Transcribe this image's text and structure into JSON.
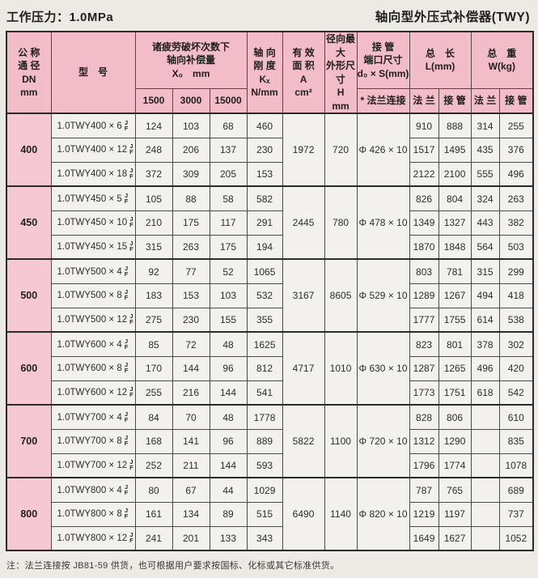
{
  "page": {
    "pressure_title": "工作压力：1.0MPa",
    "product_title": "轴向型外压式补偿器(TWY)",
    "footnote": "注：法兰连接按 JB81-59 供货，也可根据用户要求按国标、化标或其它标准供货。"
  },
  "colors": {
    "header_pink": "#f2bcc9",
    "dn_pink": "#f5c8d3",
    "paper": "#edeae5",
    "cell": "#f3f1ed",
    "border": "#4a4a4a"
  },
  "table": {
    "header": {
      "dn": "公 称\n通 径\nDN\nmm",
      "model": "型　号",
      "x_group": "诸疲劳破坏次数下\n轴向补偿量\nX₀　mm",
      "x_subs": [
        "1500",
        "3000",
        "15000"
      ],
      "kx": "轴 向\n刚 度\nKₓ\nN/mm",
      "area": "有 效\n面 积\nA\ncm²",
      "h": "径向最大\n外形尺寸\nH\nmm",
      "d": "接 管\n端口尺寸\nd₀ × S(mm)",
      "d_sub": "* 法兰连接",
      "l": "总　长\nL(mm)",
      "l_subs": [
        "法 兰",
        "接 管"
      ],
      "w": "总　重\nW(kg)",
      "w_subs": [
        "法 兰",
        "接 管"
      ]
    },
    "jf": {
      "top": "J",
      "bottom": "F"
    },
    "groups": [
      {
        "dn": "400",
        "area": "1972",
        "h": "720",
        "d": "Φ 426 × 10",
        "rows": [
          {
            "model": "1.0TWY400 × 6",
            "x": [
              "124",
              "103",
              "68"
            ],
            "kx": "460",
            "l": [
              "910",
              "888"
            ],
            "w": [
              "314",
              "255"
            ]
          },
          {
            "model": "1.0TWY400 × 12",
            "x": [
              "248",
              "206",
              "137"
            ],
            "kx": "230",
            "l": [
              "1517",
              "1495"
            ],
            "w": [
              "435",
              "376"
            ]
          },
          {
            "model": "1.0TWY400 × 18",
            "x": [
              "372",
              "309",
              "205"
            ],
            "kx": "153",
            "l": [
              "2122",
              "2100"
            ],
            "w": [
              "555",
              "496"
            ]
          }
        ]
      },
      {
        "dn": "450",
        "area": "2445",
        "h": "780",
        "d": "Φ 478 × 10",
        "rows": [
          {
            "model": "1.0TWY450 × 5",
            "x": [
              "105",
              "88",
              "58"
            ],
            "kx": "582",
            "l": [
              "826",
              "804"
            ],
            "w": [
              "324",
              "263"
            ]
          },
          {
            "model": "1.0TWY450 × 10",
            "x": [
              "210",
              "175",
              "117"
            ],
            "kx": "291",
            "l": [
              "1349",
              "1327"
            ],
            "w": [
              "443",
              "382"
            ]
          },
          {
            "model": "1.0TWY450 × 15",
            "x": [
              "315",
              "263",
              "175"
            ],
            "kx": "194",
            "l": [
              "1870",
              "1848"
            ],
            "w": [
              "564",
              "503"
            ]
          }
        ]
      },
      {
        "dn": "500",
        "area": "3167",
        "h": "8605",
        "d": "Φ 529 × 10",
        "rows": [
          {
            "model": "1.0TWY500 × 4",
            "x": [
              "92",
              "77",
              "52"
            ],
            "kx": "1065",
            "l": [
              "803",
              "781"
            ],
            "w": [
              "315",
              "299"
            ]
          },
          {
            "model": "1.0TWY500 × 8",
            "x": [
              "183",
              "153",
              "103"
            ],
            "kx": "532",
            "l": [
              "1289",
              "1267"
            ],
            "w": [
              "494",
              "418"
            ]
          },
          {
            "model": "1.0TWY500 × 12",
            "x": [
              "275",
              "230",
              "155"
            ],
            "kx": "355",
            "l": [
              "1777",
              "1755"
            ],
            "w": [
              "614",
              "538"
            ]
          }
        ]
      },
      {
        "dn": "600",
        "area": "4717",
        "h": "1010",
        "d": "Φ 630 × 10",
        "rows": [
          {
            "model": "1.0TWY600 × 4",
            "x": [
              "85",
              "72",
              "48"
            ],
            "kx": "1625",
            "l": [
              "823",
              "801"
            ],
            "w": [
              "378",
              "302"
            ]
          },
          {
            "model": "1.0TWY600 × 8",
            "x": [
              "170",
              "144",
              "96"
            ],
            "kx": "812",
            "l": [
              "1287",
              "1265"
            ],
            "w": [
              "496",
              "420"
            ]
          },
          {
            "model": "1.0TWY600 × 12",
            "x": [
              "255",
              "216",
              "144"
            ],
            "kx": "541",
            "l": [
              "1773",
              "1751"
            ],
            "w": [
              "618",
              "542"
            ]
          }
        ]
      },
      {
        "dn": "700",
        "area": "5822",
        "h": "1100",
        "d": "Φ 720 × 10",
        "rows": [
          {
            "model": "1.0TWY700 × 4",
            "x": [
              "84",
              "70",
              "48"
            ],
            "kx": "1778",
            "l": [
              "828",
              "806"
            ],
            "w": [
              "",
              "610"
            ]
          },
          {
            "model": "1.0TWY700 × 8",
            "x": [
              "168",
              "141",
              "96"
            ],
            "kx": "889",
            "l": [
              "1312",
              "1290"
            ],
            "w": [
              "",
              "835"
            ]
          },
          {
            "model": "1.0TWY700 × 12",
            "x": [
              "252",
              "211",
              "144"
            ],
            "kx": "593",
            "l": [
              "1796",
              "1774"
            ],
            "w": [
              "",
              "1078"
            ]
          }
        ]
      },
      {
        "dn": "800",
        "area": "6490",
        "h": "1140",
        "d": "Φ 820 × 10",
        "rows": [
          {
            "model": "1.0TWY800 × 4",
            "x": [
              "80",
              "67",
              "44"
            ],
            "kx": "1029",
            "l": [
              "787",
              "765"
            ],
            "w": [
              "",
              "689"
            ]
          },
          {
            "model": "1.0TWY800 × 8",
            "x": [
              "161",
              "134",
              "89"
            ],
            "kx": "515",
            "l": [
              "1219",
              "1197"
            ],
            "w": [
              "",
              "737"
            ]
          },
          {
            "model": "1.0TWY800 × 12",
            "x": [
              "241",
              "201",
              "133"
            ],
            "kx": "343",
            "l": [
              "1649",
              "1627"
            ],
            "w": [
              "",
              "1052"
            ]
          }
        ]
      }
    ]
  }
}
